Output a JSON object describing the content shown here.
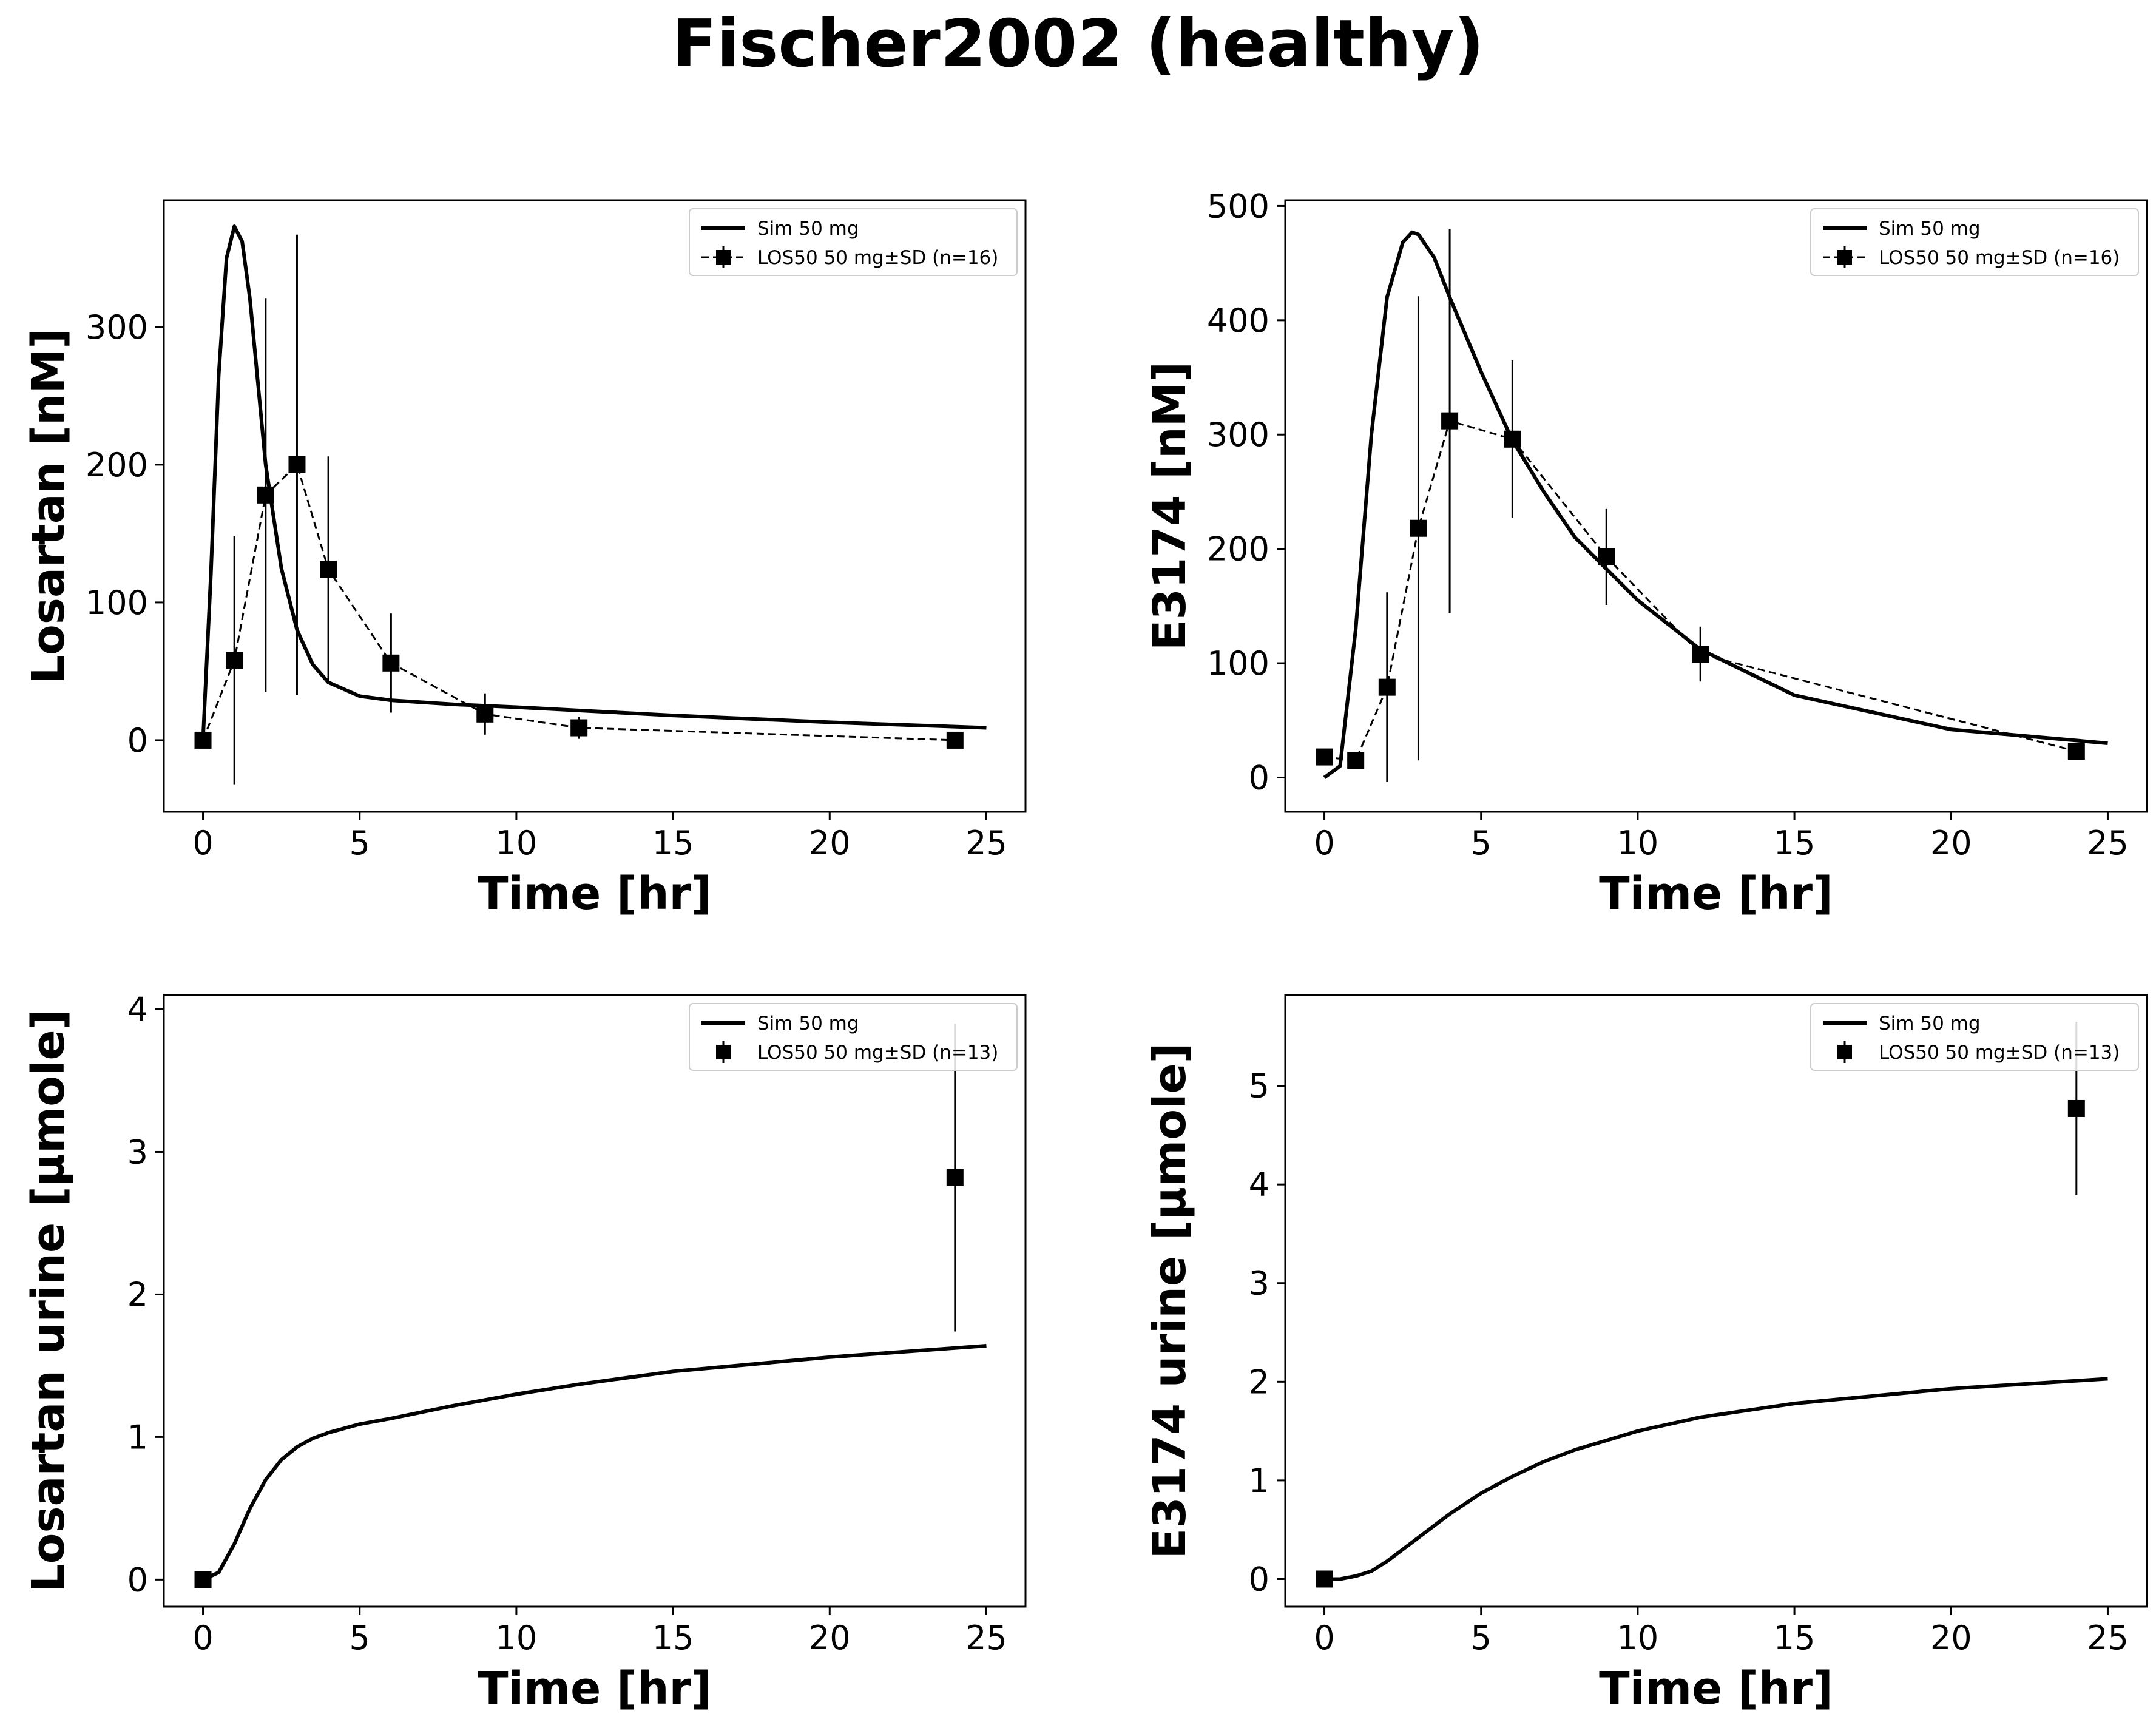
{
  "figure": {
    "title": "Fischer2002 (healthy)"
  },
  "chart_data": [
    {
      "type": "line",
      "id": "panel-losartan-plasma",
      "xlabel": "Time [hr]",
      "ylabel": "Losartan [nM]",
      "xlim": [
        -1.25,
        26.25
      ],
      "ylim": [
        -52,
        392
      ],
      "xticks": [
        0,
        5,
        10,
        15,
        20,
        25
      ],
      "yticks": [
        0,
        100,
        200,
        300
      ],
      "legend_position": "upper right",
      "series": [
        {
          "name": "Sim 50 mg",
          "style": "solid",
          "x": [
            0,
            0.25,
            0.5,
            0.75,
            1,
            1.25,
            1.5,
            2,
            2.5,
            3,
            3.5,
            4,
            5,
            6,
            8,
            10,
            15,
            20,
            25
          ],
          "y": [
            0,
            120,
            265,
            350,
            373,
            362,
            320,
            200,
            125,
            80,
            55,
            42,
            32,
            29,
            26,
            24,
            18,
            13,
            9
          ]
        },
        {
          "name": "LOS50 50 mg±SD (n=16)",
          "style": "dashed-marker",
          "x": [
            0,
            1,
            2,
            3,
            4,
            6,
            9,
            12,
            24
          ],
          "y": [
            0,
            58,
            178,
            200,
            124,
            56,
            19,
            9,
            0
          ],
          "yerr": [
            0,
            90,
            143,
            167,
            82,
            36,
            15,
            8,
            0
          ]
        }
      ]
    },
    {
      "type": "line",
      "id": "panel-e3174-plasma",
      "xlabel": "Time [hr]",
      "ylabel": "E3174 [nM]",
      "xlim": [
        -1.25,
        26.25
      ],
      "ylim": [
        -30,
        505
      ],
      "xticks": [
        0,
        5,
        10,
        15,
        20,
        25
      ],
      "yticks": [
        0,
        100,
        200,
        300,
        400,
        500
      ],
      "legend_position": "upper right",
      "series": [
        {
          "name": "Sim 50 mg",
          "style": "solid",
          "x": [
            0,
            0.5,
            1,
            1.5,
            2,
            2.5,
            2.8,
            3,
            3.5,
            4,
            5,
            6,
            7,
            8,
            10,
            12,
            15,
            20,
            25
          ],
          "y": [
            0,
            10,
            130,
            300,
            420,
            468,
            477,
            475,
            455,
            420,
            355,
            295,
            250,
            210,
            155,
            112,
            72,
            42,
            30
          ]
        },
        {
          "name": "LOS50 50 mg±SD (n=16)",
          "style": "dashed-marker",
          "x": [
            0,
            1,
            2,
            3,
            4,
            6,
            9,
            12,
            24
          ],
          "y": [
            18,
            15,
            79,
            218,
            312,
            296,
            193,
            108,
            23
          ],
          "yerr": [
            0,
            0,
            83,
            203,
            168,
            69,
            42,
            24,
            0
          ]
        }
      ]
    },
    {
      "type": "line",
      "id": "panel-losartan-urine",
      "xlabel": "Time [hr]",
      "ylabel": "Losartan urine [µmole]",
      "xlim": [
        -1.25,
        26.25
      ],
      "ylim": [
        -0.19,
        4.1
      ],
      "xticks": [
        0,
        5,
        10,
        15,
        20,
        25
      ],
      "yticks": [
        0,
        1,
        2,
        3,
        4
      ],
      "legend_position": "upper right",
      "series": [
        {
          "name": "Sim 50 mg",
          "style": "solid",
          "x": [
            0,
            0.5,
            1,
            1.5,
            2,
            2.5,
            3,
            3.5,
            4,
            5,
            6,
            8,
            10,
            12,
            15,
            20,
            25
          ],
          "y": [
            0,
            0.05,
            0.25,
            0.5,
            0.7,
            0.84,
            0.93,
            0.99,
            1.03,
            1.09,
            1.13,
            1.22,
            1.3,
            1.37,
            1.46,
            1.56,
            1.64
          ]
        },
        {
          "name": "LOS50 50 mg±SD (n=13)",
          "style": "marker",
          "x": [
            0,
            24
          ],
          "y": [
            0,
            2.82
          ],
          "yerr": [
            0,
            1.08
          ]
        }
      ]
    },
    {
      "type": "line",
      "id": "panel-e3174-urine",
      "xlabel": "Time [hr]",
      "ylabel": "E3174 urine [µmole]",
      "xlim": [
        -1.25,
        26.25
      ],
      "ylim": [
        -0.28,
        5.92
      ],
      "xticks": [
        0,
        5,
        10,
        15,
        20,
        25
      ],
      "yticks": [
        0,
        1,
        2,
        3,
        4,
        5
      ],
      "legend_position": "upper right",
      "series": [
        {
          "name": "Sim 50 mg",
          "style": "solid",
          "x": [
            0,
            0.5,
            1,
            1.5,
            2,
            3,
            4,
            5,
            6,
            7,
            8,
            10,
            12,
            15,
            20,
            25
          ],
          "y": [
            0,
            0.0,
            0.03,
            0.08,
            0.18,
            0.42,
            0.66,
            0.87,
            1.04,
            1.19,
            1.31,
            1.5,
            1.64,
            1.78,
            1.93,
            2.03
          ]
        },
        {
          "name": "LOS50 50 mg±SD (n=13)",
          "style": "marker",
          "x": [
            0,
            24
          ],
          "y": [
            0,
            4.77
          ],
          "yerr": [
            0,
            0.88
          ]
        }
      ]
    }
  ]
}
